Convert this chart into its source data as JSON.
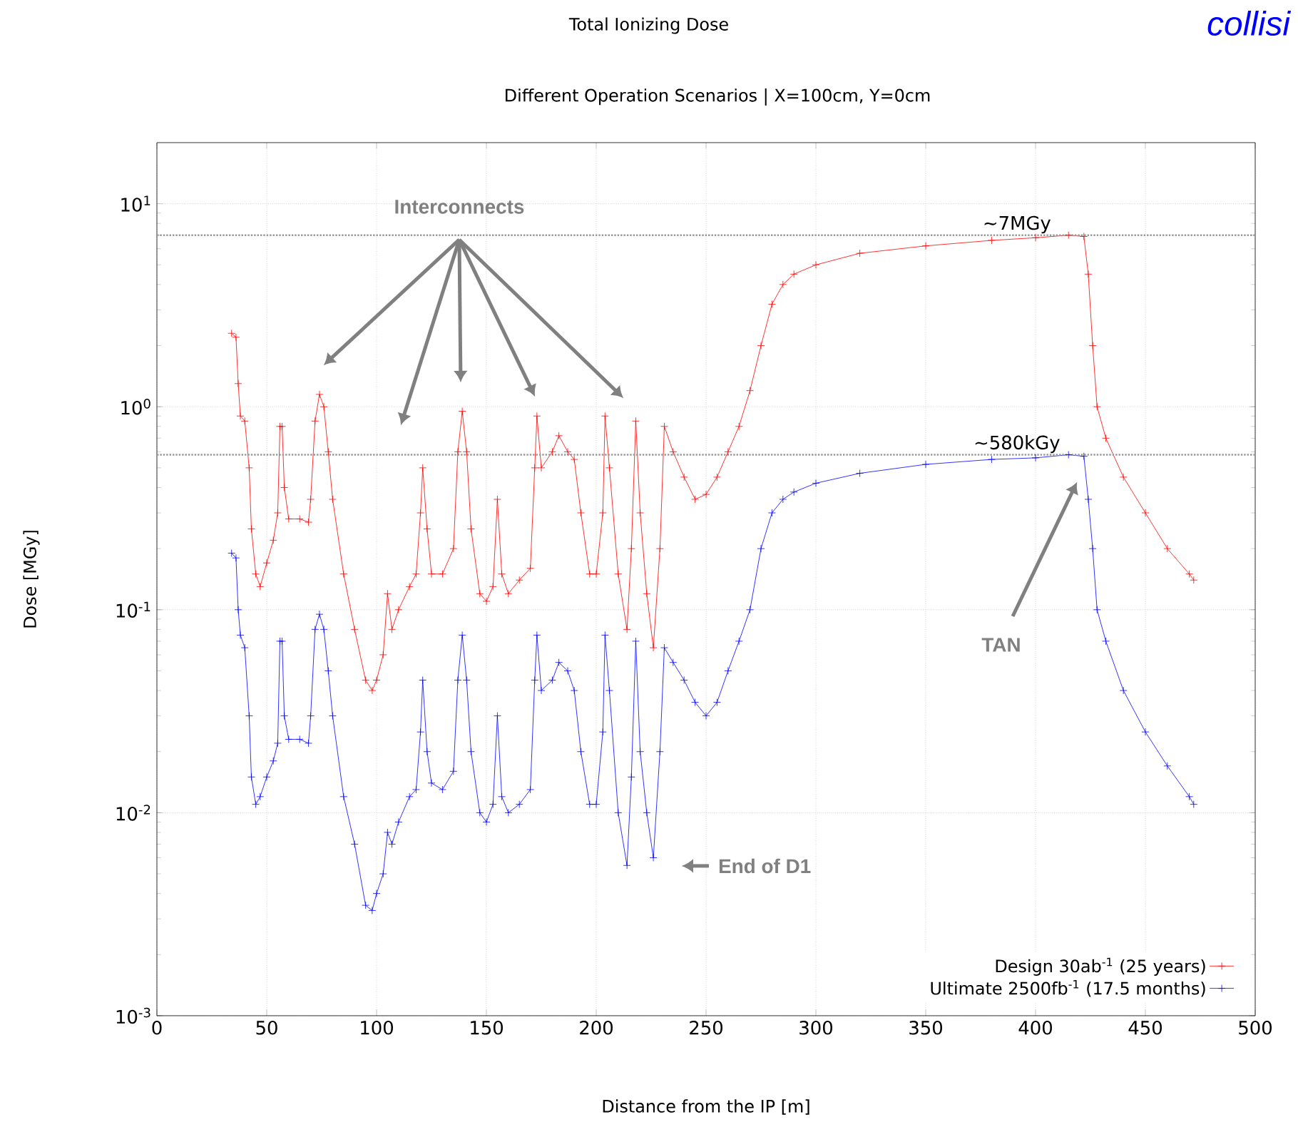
{
  "chart_data": {
    "type": "line",
    "title": "Total Ionizing Dose",
    "subtitle": "Different Operation Scenarios | X=100cm, Y=0cm",
    "xlabel": "Distance from the IP [m]",
    "ylabel": "Dose [MGy]",
    "x": [
      34,
      36,
      37,
      38,
      40,
      42,
      43,
      45,
      47,
      50,
      53,
      55,
      56,
      57,
      58,
      60,
      65,
      69,
      70,
      72,
      74,
      76,
      78,
      80,
      85,
      90,
      95,
      98,
      100,
      103,
      105,
      107,
      110,
      115,
      118,
      120,
      121,
      123,
      125,
      130,
      135,
      137,
      139,
      141,
      143,
      147,
      150,
      153,
      155,
      157,
      160,
      165,
      170,
      172,
      173,
      175,
      180,
      183,
      187,
      190,
      193,
      197,
      200,
      203,
      204,
      206,
      210,
      214,
      216,
      218,
      220,
      223,
      226,
      229,
      231,
      235,
      240,
      245,
      250,
      255,
      260,
      265,
      270,
      275,
      280,
      285,
      290,
      300,
      320,
      350,
      380,
      400,
      415,
      422,
      424,
      426,
      428,
      432,
      440,
      450,
      460,
      470,
      472
    ],
    "series": [
      {
        "name": "Design 30ab$^{-1}$ (25 years)",
        "color": "#ff0000",
        "values": [
          2.3,
          2.2,
          1.3,
          0.9,
          0.85,
          0.5,
          0.25,
          0.15,
          0.13,
          0.17,
          0.22,
          0.3,
          0.8,
          0.8,
          0.4,
          0.28,
          0.28,
          0.27,
          0.35,
          0.85,
          1.15,
          1.0,
          0.6,
          0.35,
          0.15,
          0.08,
          0.045,
          0.04,
          0.045,
          0.06,
          0.12,
          0.08,
          0.1,
          0.13,
          0.15,
          0.3,
          0.5,
          0.25,
          0.15,
          0.15,
          0.2,
          0.6,
          0.95,
          0.6,
          0.25,
          0.12,
          0.11,
          0.13,
          0.35,
          0.15,
          0.12,
          0.14,
          0.16,
          0.5,
          0.9,
          0.5,
          0.6,
          0.72,
          0.6,
          0.55,
          0.3,
          0.15,
          0.15,
          0.3,
          0.9,
          0.5,
          0.15,
          0.08,
          0.2,
          0.85,
          0.3,
          0.12,
          0.065,
          0.2,
          0.8,
          0.6,
          0.45,
          0.35,
          0.37,
          0.45,
          0.6,
          0.8,
          1.2,
          2.0,
          3.2,
          4.0,
          4.5,
          5.0,
          5.7,
          6.2,
          6.6,
          6.8,
          7.0,
          6.9,
          4.5,
          2.0,
          1.0,
          0.7,
          0.45,
          0.3,
          0.2,
          0.15,
          0.14
        ]
      },
      {
        "name": "Ultimate 2500fb$^{-1}$ (17.5 months)",
        "color": "#0000ff",
        "values": [
          0.19,
          0.18,
          0.1,
          0.075,
          0.065,
          0.03,
          0.015,
          0.011,
          0.012,
          0.015,
          0.018,
          0.022,
          0.07,
          0.07,
          0.03,
          0.023,
          0.023,
          0.022,
          0.03,
          0.08,
          0.095,
          0.08,
          0.05,
          0.03,
          0.012,
          0.007,
          0.0035,
          0.0033,
          0.004,
          0.005,
          0.008,
          0.007,
          0.009,
          0.012,
          0.013,
          0.025,
          0.045,
          0.02,
          0.014,
          0.013,
          0.016,
          0.045,
          0.075,
          0.045,
          0.02,
          0.01,
          0.009,
          0.011,
          0.03,
          0.012,
          0.01,
          0.011,
          0.013,
          0.045,
          0.075,
          0.04,
          0.045,
          0.055,
          0.05,
          0.04,
          0.02,
          0.011,
          0.011,
          0.025,
          0.075,
          0.04,
          0.01,
          0.0055,
          0.015,
          0.07,
          0.02,
          0.01,
          0.006,
          0.02,
          0.065,
          0.055,
          0.045,
          0.035,
          0.03,
          0.035,
          0.05,
          0.07,
          0.1,
          0.2,
          0.3,
          0.35,
          0.38,
          0.42,
          0.47,
          0.52,
          0.55,
          0.56,
          0.58,
          0.57,
          0.35,
          0.2,
          0.1,
          0.07,
          0.04,
          0.025,
          0.017,
          0.012,
          0.011
        ]
      }
    ],
    "log": "y",
    "xlim": [
      0,
      500
    ],
    "ylim": [
      0.001,
      20
    ],
    "xticks": [
      0,
      50,
      100,
      150,
      200,
      250,
      300,
      350,
      400,
      450,
      500
    ],
    "yticks": [
      {
        "value": 0.001,
        "label": "10$^{-3}$"
      },
      {
        "value": 0.01,
        "label": "10$^{-2}$"
      },
      {
        "value": 0.1,
        "label": "10$^{-1}$"
      },
      {
        "value": 1,
        "label": "10$^{0}$"
      },
      {
        "value": 10,
        "label": "10$^{1}$"
      }
    ],
    "grid": true,
    "legend": "bottom right",
    "marker": "cross",
    "line_style": "solid",
    "ref_lines": [
      {
        "axis": "y",
        "value": 7,
        "label": "~7MGy",
        "color": "#999999",
        "line_style": "dotted"
      },
      {
        "axis": "y",
        "value": 0.58,
        "label": "~580kGy",
        "color": "#999999",
        "line_style": "dotted"
      }
    ],
    "annotations": [
      "Interconnects",
      "TAN",
      "End of D1",
      "collisi"
    ]
  }
}
